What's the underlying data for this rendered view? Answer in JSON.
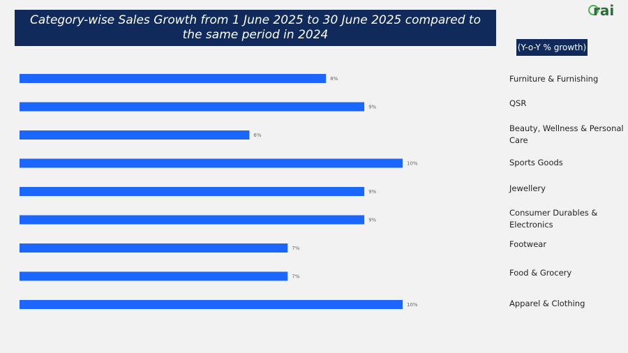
{
  "title": "Category-wise Sales Growth from 1 June 2025 to 30 June 2025 compared to the same period in 2024",
  "legend_box": "(Y-o-Y % growth)",
  "logo": {
    "text": "rai"
  },
  "colors": {
    "bar": "#1a66ff",
    "banner": "#102a5c"
  },
  "chart_data": {
    "type": "bar",
    "orientation": "horizontal",
    "title": "Category-wise Sales Growth from 1 June 2025 to 30 June 2025 compared to the same period in 2024",
    "xlabel": "",
    "ylabel": "",
    "xlim": [
      0,
      10
    ],
    "grid": false,
    "categories": [
      "Furniture & Furnishing",
      "QSR",
      "Beauty, Wellness & Personal Care",
      "Sports Goods",
      "Jewellery",
      "Consumer Durables & Electronics",
      "Footwear",
      "Food & Grocery",
      "Apparel & Clothing"
    ],
    "values": [
      8,
      9,
      6,
      10,
      9,
      9,
      7,
      7,
      10
    ],
    "data_labels": [
      "8%",
      "9%",
      "6%",
      "10%",
      "9%",
      "9%",
      "7%",
      "7%",
      "10%"
    ]
  }
}
